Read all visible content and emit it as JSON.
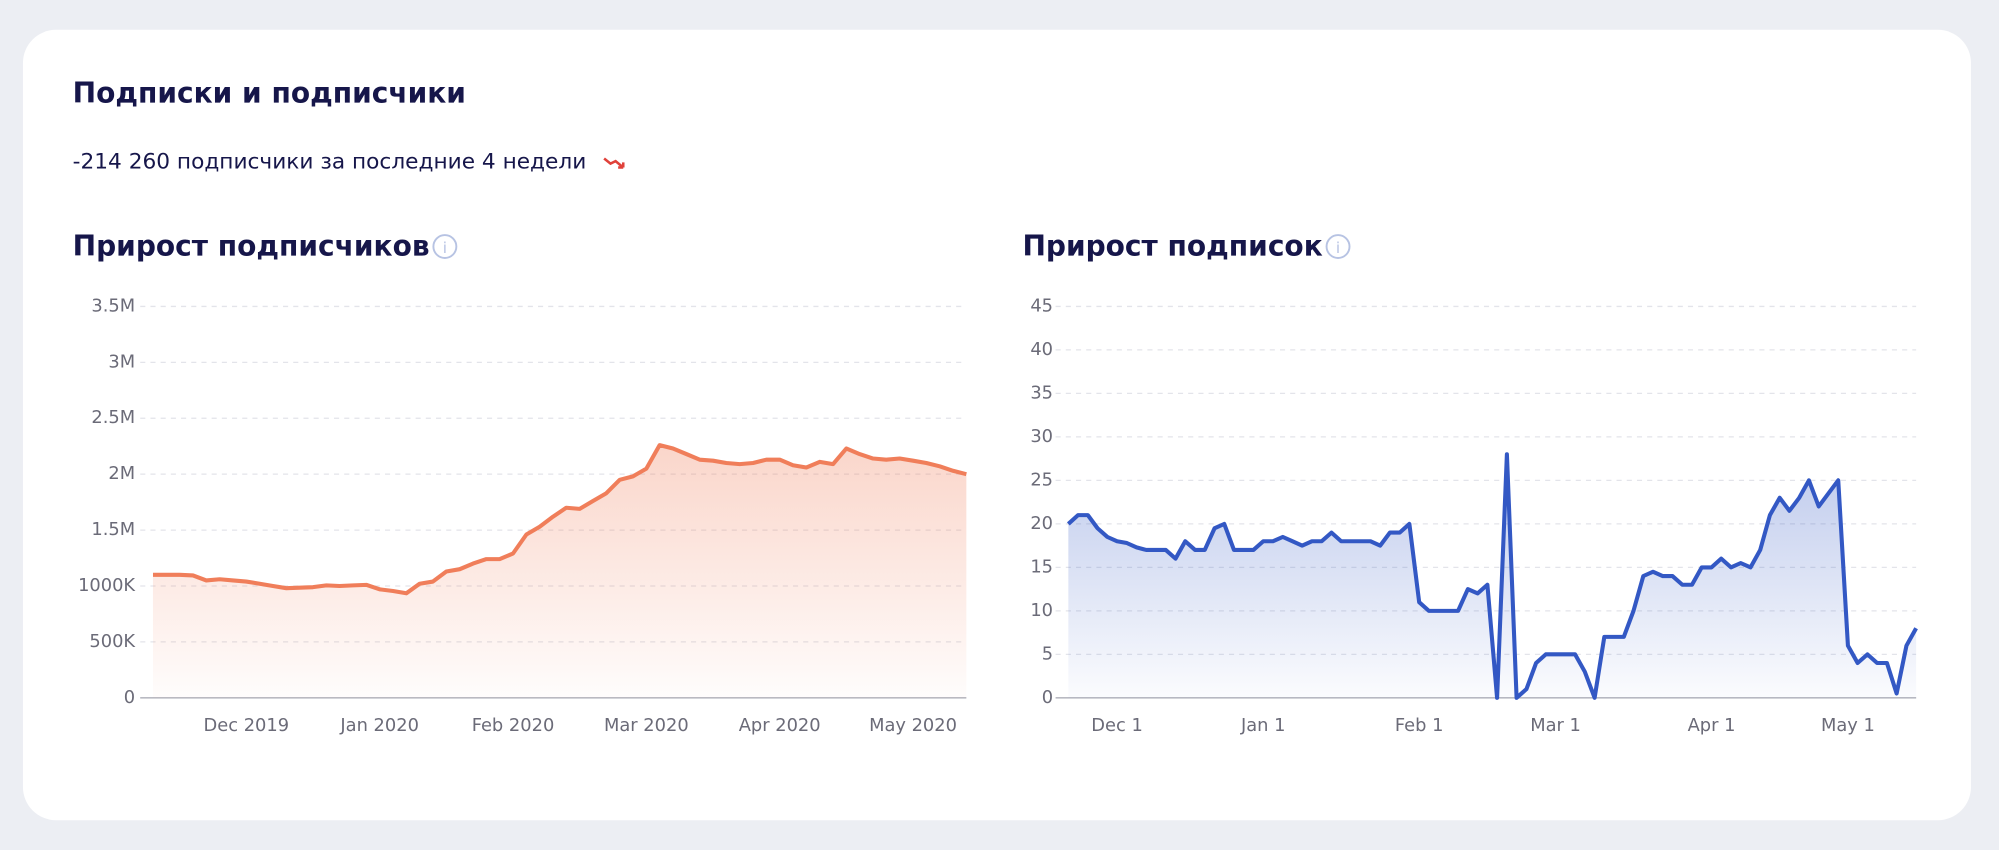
{
  "title": "Подписки и подписчики",
  "summary": "-214 260 подписчики за последние 4 недели",
  "chart_data": [
    {
      "type": "line",
      "title": "Прирост подписчиков",
      "color": "#f07e5a",
      "grid": true,
      "categories": [
        null,
        null,
        null,
        null,
        null,
        null,
        null,
        "Dec 2019",
        null,
        null,
        null,
        null,
        null,
        null,
        null,
        null,
        null,
        "Jan 2020",
        null,
        null,
        null,
        null,
        null,
        null,
        null,
        null,
        null,
        "Feb 2020",
        null,
        null,
        null,
        null,
        null,
        null,
        null,
        null,
        null,
        "Mar 2020",
        null,
        null,
        null,
        null,
        null,
        null,
        null,
        null,
        null,
        "Apr 2020",
        null,
        null,
        null,
        null,
        null,
        null,
        null,
        null,
        null,
        "May 2020",
        null,
        null,
        null,
        null
      ],
      "values": [
        1100000,
        1100000,
        1100000,
        1095000,
        1050000,
        1060000,
        1050000,
        1040000,
        1020000,
        1000000,
        980000,
        985000,
        990000,
        1005000,
        1000000,
        1005000,
        1010000,
        970000,
        955000,
        935000,
        1020000,
        1040000,
        1130000,
        1150000,
        1200000,
        1240000,
        1240000,
        1290000,
        1460000,
        1530000,
        1620000,
        1700000,
        1690000,
        1760000,
        1830000,
        1950000,
        1980000,
        2050000,
        2260000,
        2230000,
        2180000,
        2130000,
        2120000,
        2100000,
        2090000,
        2100000,
        2130000,
        2130000,
        2080000,
        2060000,
        2110000,
        2090000,
        2230000,
        2180000,
        2140000,
        2130000,
        2140000,
        2120000,
        2100000,
        2070000,
        2030000,
        2000000
      ],
      "ylim": [
        0,
        3500000
      ],
      "yticks": [
        0,
        {
          "value": 500000,
          "label": "500K"
        },
        {
          "value": 1000000,
          "label": "1000K"
        },
        {
          "value": 1500000,
          "label": "1.5M"
        },
        {
          "value": 2000000,
          "label": "2M"
        },
        {
          "value": 2500000,
          "label": "2.5M"
        },
        {
          "value": 3000000,
          "label": "3M"
        },
        {
          "value": 3500000,
          "label": "3.5M"
        }
      ]
    },
    {
      "type": "line",
      "title": "Прирост подписок",
      "color": "#3358c4",
      "grid": true,
      "categories": [
        null,
        null,
        null,
        null,
        null,
        "Dec 1",
        null,
        null,
        null,
        null,
        null,
        null,
        null,
        null,
        null,
        null,
        null,
        null,
        null,
        null,
        "Jan 1",
        null,
        null,
        null,
        null,
        null,
        null,
        null,
        null,
        null,
        null,
        null,
        null,
        null,
        null,
        null,
        "Feb 1",
        null,
        null,
        null,
        null,
        null,
        null,
        null,
        null,
        null,
        null,
        null,
        null,
        null,
        "Mar 1",
        null,
        null,
        null,
        null,
        null,
        null,
        null,
        null,
        null,
        null,
        null,
        null,
        null,
        null,
        null,
        "Apr 1",
        null,
        null,
        null,
        null,
        null,
        null,
        null,
        null,
        null,
        null,
        null,
        null,
        null,
        "May 1",
        null,
        null,
        null,
        null,
        null,
        null,
        null
      ],
      "values": [
        20,
        21,
        21,
        19.5,
        18.5,
        18,
        17.8,
        17.3,
        17,
        17,
        17,
        16,
        18,
        17,
        17,
        19.5,
        20,
        17,
        17,
        17,
        18,
        18,
        18.5,
        18,
        17.5,
        18,
        18,
        19,
        18,
        18,
        18,
        18,
        17.5,
        19,
        19,
        20,
        11,
        10,
        10,
        10,
        10,
        12.5,
        12,
        13,
        0,
        28,
        0,
        1,
        4,
        5,
        5,
        5,
        5,
        3,
        0,
        7,
        7,
        7,
        10,
        14,
        14.5,
        14,
        14,
        13,
        13,
        15,
        15,
        16,
        15,
        15.5,
        15,
        17,
        21,
        23,
        21.5,
        23,
        25,
        22,
        23.5,
        25,
        6,
        4,
        5,
        4,
        4,
        0.5,
        6,
        8
      ],
      "ylim": [
        0,
        45
      ],
      "yticks": [
        0,
        5,
        10,
        15,
        20,
        25,
        30,
        35,
        40,
        45
      ]
    }
  ]
}
